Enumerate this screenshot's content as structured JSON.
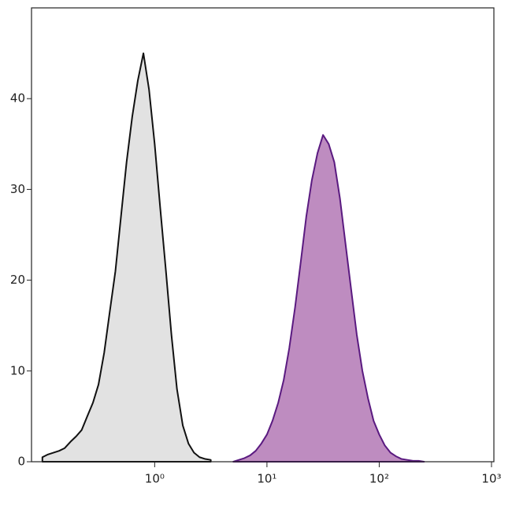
{
  "chart_data": {
    "type": "area",
    "xscale": "log",
    "xlim": [
      0.08,
      1050
    ],
    "ylim": [
      0,
      50
    ],
    "xticks": [
      {
        "value": 1,
        "label": "10⁰"
      },
      {
        "value": 10,
        "label": "10¹"
      },
      {
        "value": 100,
        "label": "10²"
      },
      {
        "value": 1000,
        "label": "10³"
      }
    ],
    "yticks": [
      0,
      10,
      20,
      30,
      40
    ],
    "series": [
      {
        "color": "#111111",
        "fill": "#e2e2e2",
        "x": [
          0.1,
          0.112,
          0.126,
          0.141,
          0.158,
          0.178,
          0.2,
          0.224,
          0.251,
          0.282,
          0.316,
          0.355,
          0.398,
          0.447,
          0.501,
          0.562,
          0.631,
          0.708,
          0.794,
          0.891,
          1,
          1.12,
          1.26,
          1.41,
          1.58,
          1.78,
          2,
          2.24,
          2.51,
          2.82,
          3.16
        ],
        "values": [
          0.5,
          0.8,
          1,
          1.2,
          1.5,
          2.2,
          2.8,
          3.5,
          5,
          6.5,
          8.5,
          12,
          16.5,
          21,
          27,
          33,
          38,
          42,
          45,
          41,
          35,
          28,
          21,
          14,
          8,
          4,
          2,
          1,
          0.5,
          0.3,
          0.2
        ]
      },
      {
        "color": "#5a1a80",
        "fill": "#be8cc0",
        "x": [
          5.01,
          5.62,
          6.31,
          7.08,
          7.94,
          8.91,
          10,
          11.2,
          12.6,
          14.1,
          15.8,
          17.8,
          20,
          22.4,
          25.1,
          28.2,
          31.6,
          35.5,
          39.8,
          44.7,
          50.1,
          56.2,
          63.1,
          70.8,
          79.4,
          89.1,
          100,
          112,
          126,
          141,
          158,
          178,
          200,
          224,
          251
        ],
        "values": [
          0,
          0.2,
          0.4,
          0.7,
          1.2,
          2,
          3,
          4.5,
          6.5,
          9,
          12.5,
          17,
          22,
          27,
          31,
          34,
          36,
          35,
          33,
          29,
          24,
          19,
          14,
          10,
          7,
          4.5,
          3,
          1.8,
          1,
          0.6,
          0.3,
          0.2,
          0.1,
          0.1,
          0
        ]
      }
    ]
  }
}
